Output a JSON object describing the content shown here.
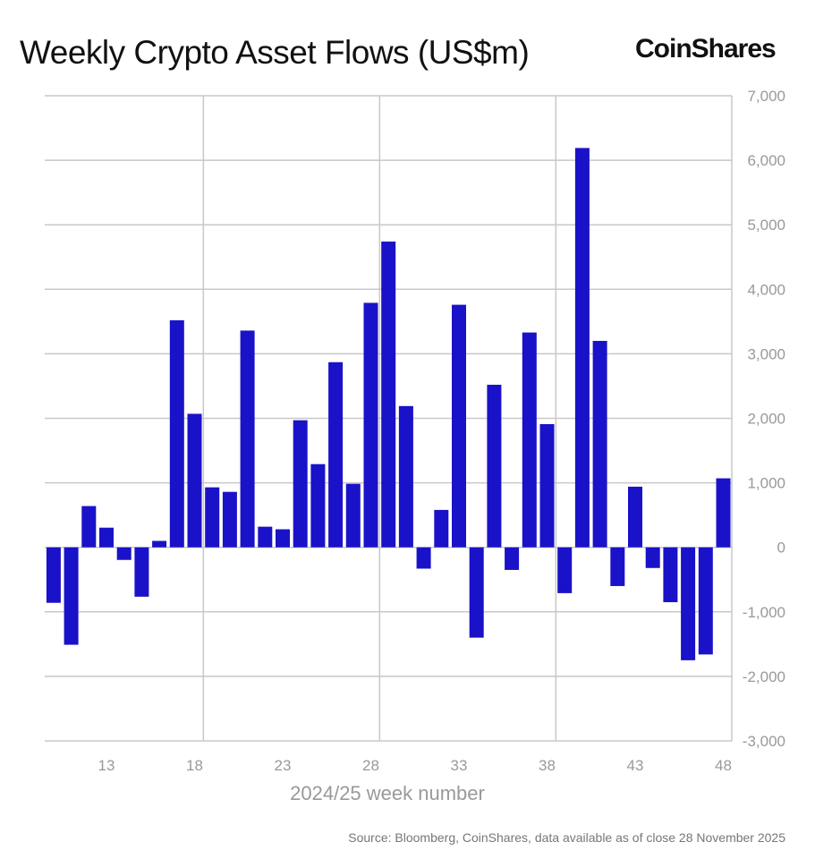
{
  "chart_data": {
    "type": "bar",
    "title": "Weekly Crypto Asset Flows (US$m)",
    "brand": "CoinShares",
    "xlabel": "2024/25 week number",
    "ylabel": "",
    "source": "Source: Bloomberg, CoinShares, data available as of close 28 November 2025",
    "ylim": [
      -3000,
      7000
    ],
    "yticks": [
      "7,000",
      "6,000",
      "5,000",
      "4,000",
      "3,000",
      "2,000",
      "1,000",
      "0",
      "-1,000",
      "-2,000",
      "-3,000"
    ],
    "ytick_values": [
      7000,
      6000,
      5000,
      4000,
      3000,
      2000,
      1000,
      0,
      -1000,
      -2000,
      -3000
    ],
    "xticks": [
      "13",
      "18",
      "23",
      "28",
      "33",
      "38",
      "43",
      "48"
    ],
    "categories": [
      10,
      11,
      12,
      13,
      14,
      15,
      16,
      17,
      18,
      19,
      20,
      21,
      22,
      23,
      24,
      25,
      26,
      27,
      28,
      29,
      30,
      31,
      32,
      33,
      34,
      35,
      36,
      37,
      38,
      39,
      40,
      41,
      42,
      43,
      44,
      45,
      46,
      47,
      48
    ],
    "values": [
      -860,
      -1510,
      640,
      305,
      -195,
      -765,
      100,
      3520,
      2070,
      930,
      860,
      3360,
      320,
      280,
      1970,
      1290,
      2870,
      985,
      3790,
      4740,
      2190,
      -330,
      580,
      3760,
      -1400,
      2520,
      -350,
      3330,
      1910,
      -710,
      6190,
      3200,
      -600,
      940,
      -320,
      -850,
      -1750,
      -1660,
      1070
    ],
    "bar_color": "#1a12c8",
    "grid": true,
    "legend": "none"
  }
}
